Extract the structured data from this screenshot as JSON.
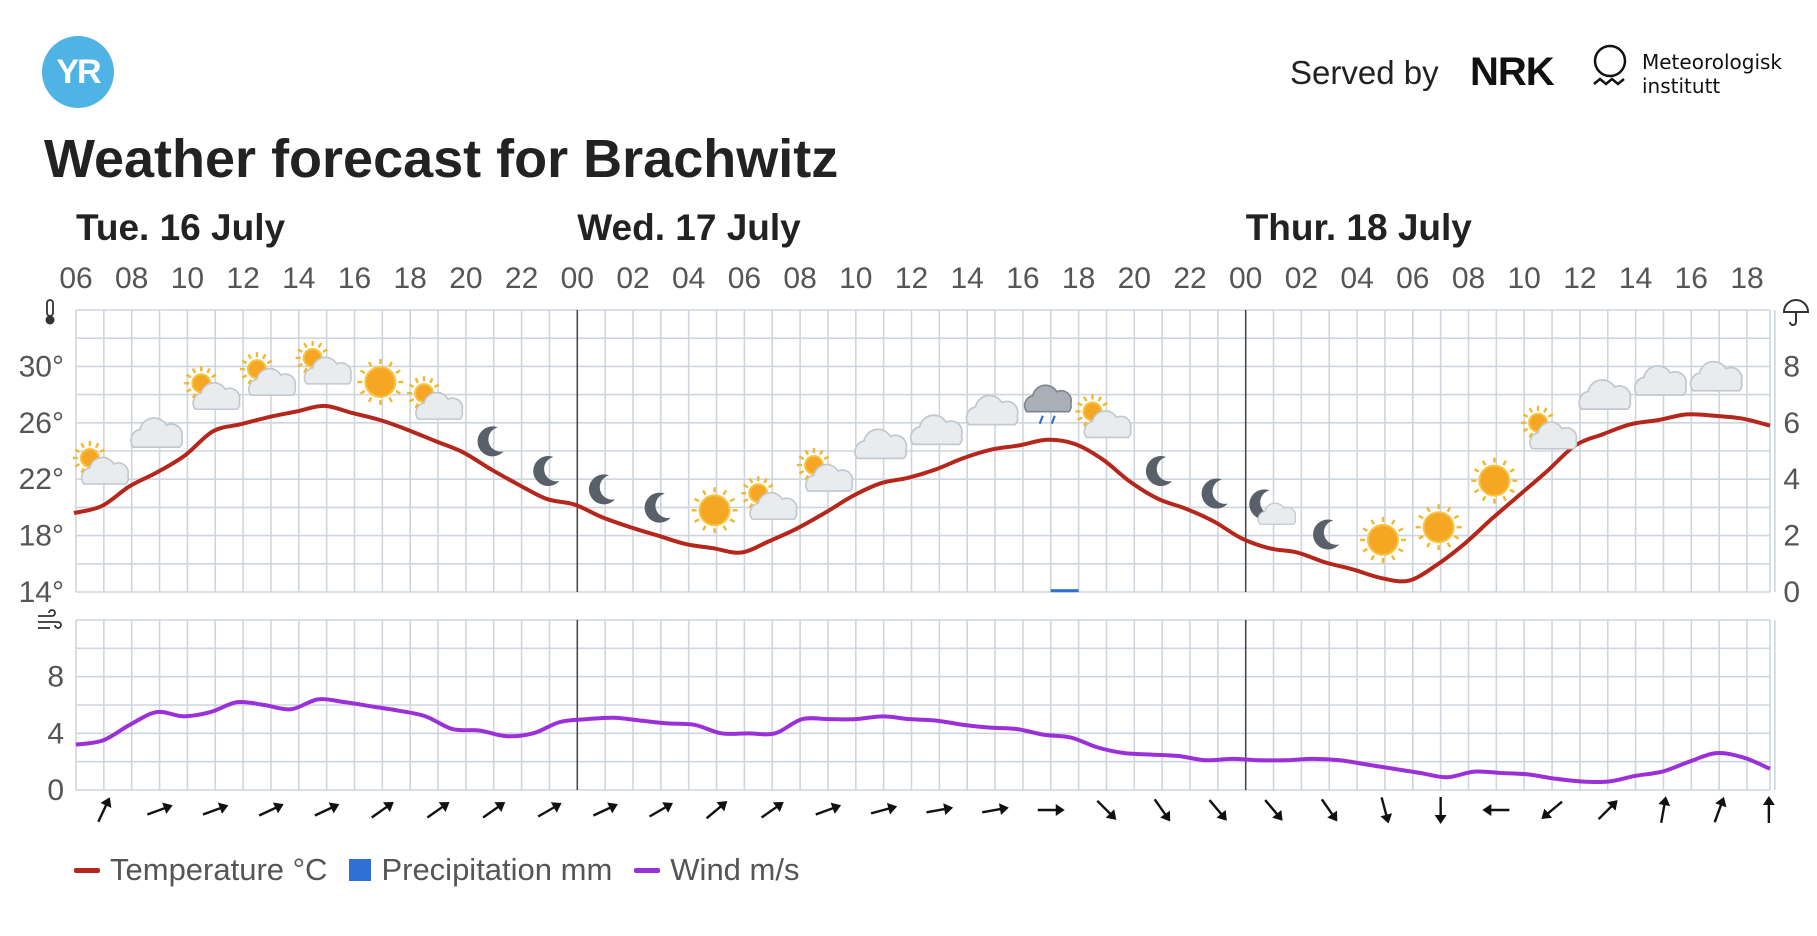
{
  "header": {
    "logo_text": "YR",
    "served_by": "Served by",
    "nrk_logo": "NRK",
    "met_line1": "Meteorologisk",
    "met_line2": "institutt"
  },
  "title": "Weather forecast for Brachwitz",
  "chart_data": {
    "type": "line",
    "days": [
      {
        "label": "Tue. 16 July",
        "start_hour_index": 0
      },
      {
        "label": "Wed. 17 July",
        "start_hour_index": 18
      },
      {
        "label": "Thur. 18 July",
        "start_hour_index": 42
      }
    ],
    "hour_ticks": [
      "06",
      "08",
      "10",
      "12",
      "14",
      "16",
      "18",
      "20",
      "22",
      "00",
      "02",
      "04",
      "06",
      "08",
      "10",
      "12",
      "14",
      "16",
      "18",
      "20",
      "22",
      "00",
      "02",
      "04",
      "06",
      "08",
      "10",
      "12",
      "14",
      "16",
      "18"
    ],
    "temperature": {
      "name": "Temperature °C",
      "color": "#b5271b",
      "yticks": [
        "30°",
        "26°",
        "22°",
        "18°",
        "14°"
      ],
      "ylim": [
        14,
        34
      ],
      "values": [
        19.6,
        20.1,
        21.5,
        22.5,
        23.7,
        25.4,
        25.9,
        26.4,
        26.8,
        27.2,
        26.7,
        26.2,
        25.5,
        24.7,
        23.9,
        22.7,
        21.6,
        20.6,
        20.2,
        19.3,
        18.6,
        18.0,
        17.4,
        17.1,
        16.8,
        17.6,
        18.5,
        19.6,
        20.8,
        21.7,
        22.1,
        22.7,
        23.5,
        24.1,
        24.4,
        24.8,
        24.5,
        23.4,
        21.8,
        20.6,
        19.9,
        19.0,
        17.8,
        17.1,
        16.8,
        16.1,
        15.6,
        15.0,
        14.8,
        15.9,
        17.4,
        19.2,
        20.9,
        22.6,
        24.4,
        25.2,
        25.9,
        26.2,
        26.6,
        26.5,
        26.3,
        25.8
      ],
      "weather_icons": [
        "partly-cloudy-day",
        "cloudy",
        "partly-cloudy-day",
        "partly-cloudy-day",
        "partly-cloudy-day",
        "clear-sun",
        "partly-cloudy-day",
        "clear-night",
        "clear-night",
        "clear-night",
        "clear-night",
        "clear-sun",
        "partly-cloudy-day",
        "partly-cloudy-day",
        "cloudy",
        "cloudy",
        "cloudy",
        "light-rain",
        "partly-cloudy-day",
        "clear-night",
        "clear-night",
        "partly-cloudy-night",
        "clear-night",
        "clear-sun",
        "clear-sun",
        "clear-sun",
        "partly-cloudy-day",
        "cloudy",
        "cloudy",
        "cloudy"
      ]
    },
    "precipitation": {
      "name": "Precipitation mm",
      "color": "#2f6fd6",
      "yticks": [
        "8",
        "6",
        "4",
        "2",
        "0"
      ],
      "ylim": [
        0,
        10
      ],
      "hourly": [
        {
          "hour_index": 35,
          "value": 0.1
        }
      ]
    },
    "wind": {
      "name": "Wind m/s",
      "color": "#9b30d9",
      "yticks": [
        "8",
        "4",
        "0"
      ],
      "ylim": [
        0,
        12
      ],
      "values": [
        3.2,
        3.5,
        4.6,
        5.5,
        5.2,
        5.5,
        6.2,
        6.0,
        5.7,
        6.4,
        6.2,
        5.9,
        5.6,
        5.2,
        4.3,
        4.2,
        3.8,
        4.0,
        4.8,
        5.0,
        5.1,
        4.9,
        4.7,
        4.6,
        4.0,
        4.0,
        4.0,
        5.0,
        5.0,
        5.0,
        5.2,
        5.0,
        4.9,
        4.6,
        4.4,
        4.3,
        3.9,
        3.7,
        3.0,
        2.6,
        2.5,
        2.4,
        2.1,
        2.2,
        2.1,
        2.1,
        2.2,
        2.1,
        1.8,
        1.5,
        1.2,
        0.9,
        1.3,
        1.2,
        1.1,
        0.8,
        0.6,
        0.6,
        1.0,
        1.3,
        2.0,
        2.6,
        2.3,
        1.5
      ],
      "directions_to_deg": [
        25,
        70,
        70,
        65,
        65,
        55,
        55,
        55,
        60,
        65,
        60,
        50,
        55,
        70,
        75,
        80,
        80,
        90,
        135,
        145,
        140,
        140,
        145,
        165,
        180,
        270,
        230,
        45,
        10,
        20,
        0
      ]
    },
    "precip_axis_icon": "umbrella-icon",
    "temp_axis_icon": "thermometer-icon",
    "wind_axis_icon": "wind-icon"
  },
  "legend": [
    {
      "label": "Temperature °C",
      "color": "#b5271b",
      "kind": "line"
    },
    {
      "label": "Precipitation mm",
      "color": "#2f6fd6",
      "kind": "square"
    },
    {
      "label": "Wind m/s",
      "color": "#9b30d9",
      "kind": "line"
    }
  ]
}
